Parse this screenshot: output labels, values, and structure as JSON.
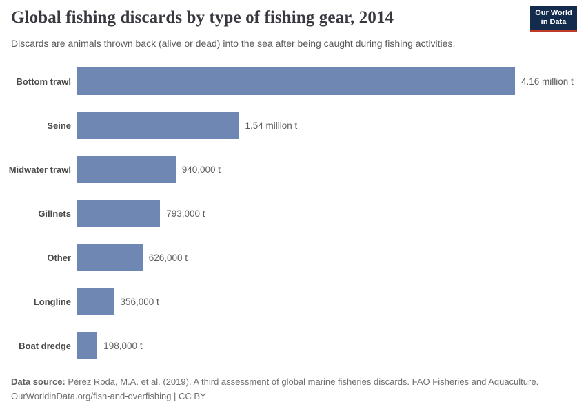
{
  "header": {
    "title": "Global fishing discards by type of fishing gear, 2014",
    "subtitle": "Discards are animals thrown back (alive or dead) into the sea after being caught during fishing activities.",
    "logo": {
      "line1": "Our World",
      "line2": "in Data"
    }
  },
  "chart_data": {
    "type": "bar",
    "orientation": "horizontal",
    "title": "Global fishing discards by type of fishing gear, 2014",
    "unit": "t",
    "grid": false,
    "legend": false,
    "xlim": [
      0,
      4160000
    ],
    "categories": [
      "Bottom trawl",
      "Seine",
      "Midwater trawl",
      "Gillnets",
      "Other",
      "Longline",
      "Boat dredge"
    ],
    "values": [
      4160000,
      1540000,
      940000,
      793000,
      626000,
      356000,
      198000
    ],
    "value_labels": [
      "4.16 million t",
      "1.54 million t",
      "940,000 t",
      "793,000 t",
      "626,000 t",
      "356,000 t",
      "198,000 t"
    ],
    "bar_color": "#6e87b3"
  },
  "footer": {
    "source_label": "Data source:",
    "source_text": " Pérez Roda, M.A. et al. (2019). A third assessment of global marine fisheries discards. FAO Fisheries and Aquaculture.",
    "link_line": "OurWorldinData.org/fish-and-overfishing | CC BY"
  },
  "colors": {
    "bar": "#6e87b3",
    "title": "#383840",
    "subtitle": "#5a5a5a",
    "axis": "#d9d9d9",
    "logo_bg": "#132c4e",
    "logo_accent": "#c0392b"
  }
}
